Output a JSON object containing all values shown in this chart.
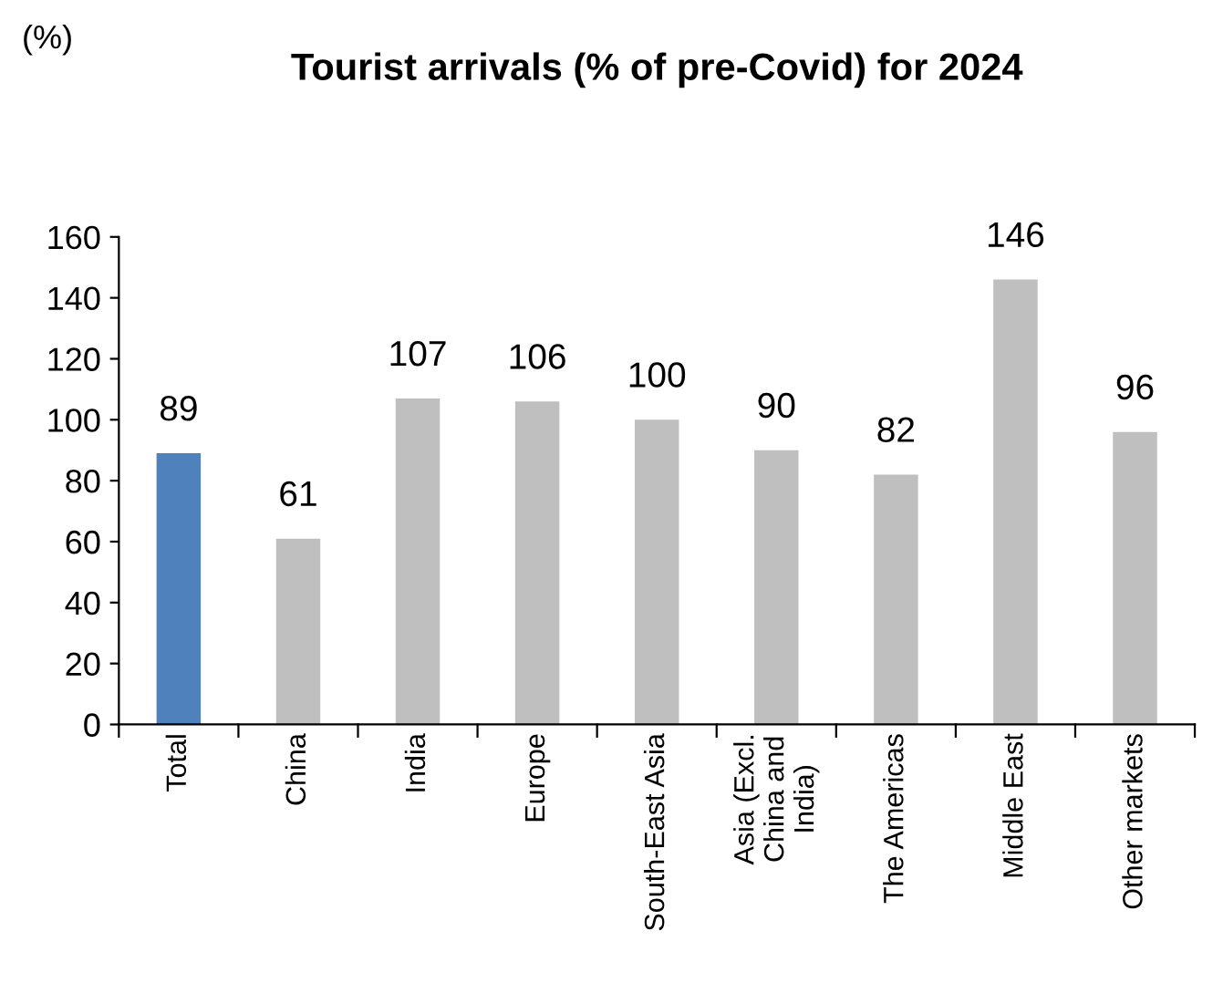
{
  "chart_data": {
    "type": "bar",
    "title": "Tourist arrivals (% of pre-Covid) for 2024",
    "annotations": [
      "(%)"
    ],
    "categories": [
      "Total",
      "China",
      "India",
      "Europe",
      "South-East Asia",
      "Asia (Excl.\nChina and\nIndia)",
      "The Americas",
      "Middle East",
      "Other markets"
    ],
    "values": [
      89,
      61,
      107,
      106,
      100,
      90,
      82,
      146,
      96
    ],
    "colors": [
      "#4f81bd",
      "#bfbfbf",
      "#bfbfbf",
      "#bfbfbf",
      "#bfbfbf",
      "#bfbfbf",
      "#bfbfbf",
      "#bfbfbf",
      "#bfbfbf"
    ],
    "ylim": [
      0,
      160
    ],
    "yticks": [
      0,
      20,
      40,
      60,
      80,
      100,
      120,
      140,
      160
    ],
    "data_labels": true,
    "grid": false,
    "legend": false
  }
}
